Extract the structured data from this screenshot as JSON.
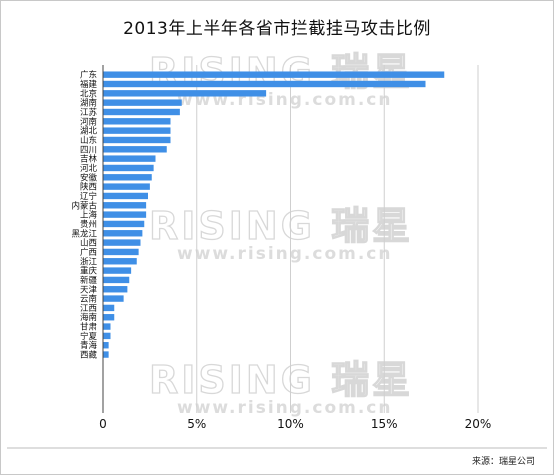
{
  "chart_data": {
    "type": "bar",
    "orientation": "horizontal",
    "title": "2013年上半年各省市拦截挂马攻击比例",
    "categories": [
      "广东",
      "福建",
      "北京",
      "湖南",
      "江苏",
      "河南",
      "湖北",
      "山东",
      "四川",
      "吉林",
      "河北",
      "安徽",
      "陕西",
      "辽宁",
      "内蒙古",
      "上海",
      "贵州",
      "黑龙江",
      "山西",
      "广西",
      "浙江",
      "重庆",
      "新疆",
      "天津",
      "云南",
      "江西",
      "海南",
      "甘肃",
      "宁夏",
      "青海",
      "西藏"
    ],
    "values": [
      18.2,
      17.2,
      8.7,
      4.2,
      4.1,
      3.6,
      3.6,
      3.6,
      3.4,
      2.8,
      2.7,
      2.6,
      2.5,
      2.4,
      2.3,
      2.3,
      2.2,
      2.1,
      2.0,
      1.9,
      1.8,
      1.5,
      1.4,
      1.3,
      1.1,
      0.6,
      0.6,
      0.4,
      0.4,
      0.3,
      0.3
    ],
    "xlim": [
      0,
      20
    ],
    "xticks": [
      0,
      5,
      10,
      15,
      20
    ],
    "xtick_labels": [
      "0",
      "5%",
      "10%",
      "15%",
      "20%"
    ],
    "xlabel": "",
    "ylabel": "",
    "grid": "vertical",
    "legend": "none",
    "bar_color": "#3f8fe6",
    "grid_color": "#cfcfcf"
  },
  "watermark": {
    "logo_text": "RISING 瑞星",
    "url_text": "www.rising.com.cn"
  },
  "source_note": "来源：瑞星公司"
}
